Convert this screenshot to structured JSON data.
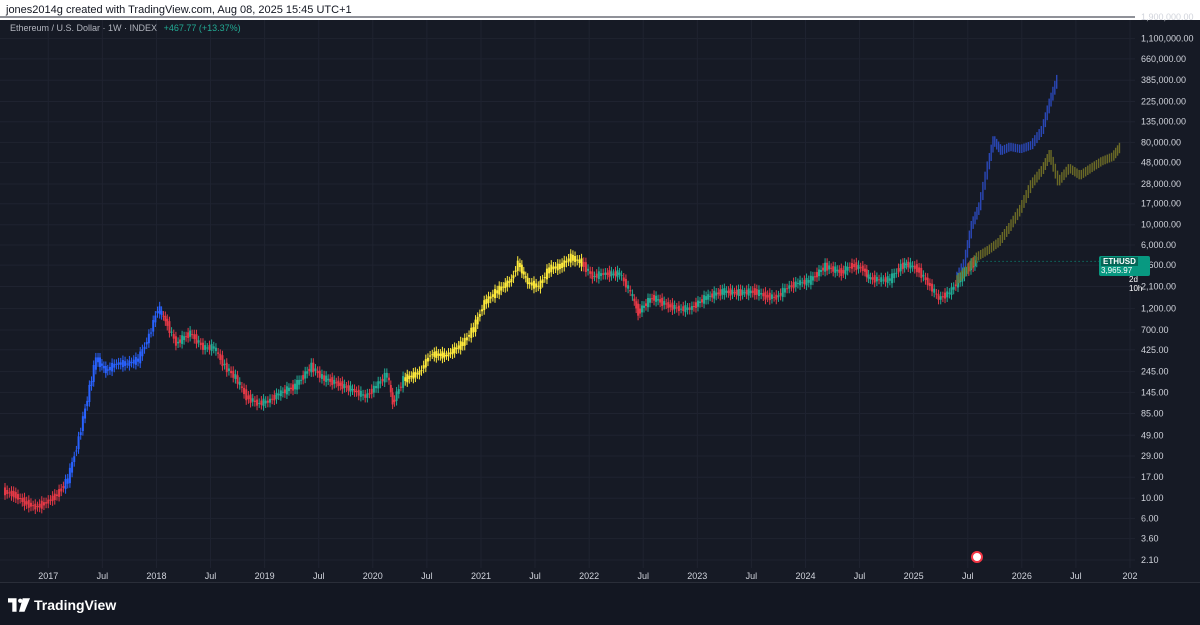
{
  "header": {
    "attribution": "jones2014g created with TradingView.com, Aug 08, 2025 15:45 UTC+1"
  },
  "legend": {
    "symbol": "Ethereum / U.S. Dollar · 1W · INDEX",
    "change": "+467.77 (+13.37%)"
  },
  "price_tag": {
    "symbol": "ETHUSD",
    "price": "3,965.97",
    "countdown": "2d 10h"
  },
  "footer": {
    "brand": "TradingView"
  },
  "colors": {
    "background": "#161a25",
    "grid": "#1f2330",
    "blue_phase": "#2962ff",
    "red_phase": "#e53946",
    "green_phase": "#22ab94",
    "yellow_phase": "#ffeb3b",
    "projection_blue": "#2a47b5",
    "projection_olive": "#6b6a26",
    "price_tag": "#089981"
  },
  "chart_data": {
    "type": "line",
    "title": "Ethereum / U.S. Dollar · 1W · INDEX",
    "scale": "log",
    "grid": true,
    "y_ticks": [
      "1,900,000.00",
      "1,100,000.00",
      "660,000.00",
      "385,000.00",
      "225,000.00",
      "135,000.00",
      "80,000.00",
      "48,000.00",
      "28,000.00",
      "17,000.00",
      "10,000.00",
      "6,000.00",
      "3,600.00",
      "2,100.00",
      "1,200.00",
      "700.00",
      "425.00",
      "245.00",
      "145.00",
      "85.00",
      "49.00",
      "29.00",
      "17.00",
      "10.00",
      "6.00",
      "3.60",
      "2.10"
    ],
    "x_ticks": [
      "2017",
      "Jul",
      "2018",
      "Jul",
      "2019",
      "Jul",
      "2020",
      "Jul",
      "2021",
      "Jul",
      "2022",
      "Jul",
      "2023",
      "Jul",
      "2024",
      "Jul",
      "2025",
      "Jul",
      "2026",
      "Jul",
      "202"
    ],
    "series": [
      {
        "type": "historical",
        "points": [
          [
            2016.6,
            12
          ],
          [
            2016.7,
            11
          ],
          [
            2016.8,
            9
          ],
          [
            2016.9,
            8
          ],
          [
            2017.0,
            9
          ],
          [
            2017.1,
            11
          ],
          [
            2017.2,
            16
          ],
          [
            2017.3,
            45
          ],
          [
            2017.4,
            160
          ],
          [
            2017.46,
            340
          ],
          [
            2017.55,
            250
          ],
          [
            2017.65,
            300
          ],
          [
            2017.75,
            300
          ],
          [
            2017.85,
            330
          ],
          [
            2017.95,
            600
          ],
          [
            2018.03,
            1200
          ],
          [
            2018.1,
            900
          ],
          [
            2018.2,
            500
          ],
          [
            2018.33,
            650
          ],
          [
            2018.45,
            450
          ],
          [
            2018.55,
            450
          ],
          [
            2018.65,
            280
          ],
          [
            2018.75,
            210
          ],
          [
            2018.85,
            130
          ],
          [
            2018.95,
            110
          ],
          [
            2019.05,
            115
          ],
          [
            2019.15,
            140
          ],
          [
            2019.3,
            170
          ],
          [
            2019.45,
            280
          ],
          [
            2019.55,
            210
          ],
          [
            2019.7,
            180
          ],
          [
            2019.85,
            150
          ],
          [
            2019.95,
            130
          ],
          [
            2020.05,
            170
          ],
          [
            2020.15,
            230
          ],
          [
            2020.2,
            110
          ],
          [
            2020.3,
            200
          ],
          [
            2020.45,
            240
          ],
          [
            2020.55,
            380
          ],
          [
            2020.7,
            370
          ],
          [
            2020.85,
            500
          ],
          [
            2020.95,
            730
          ],
          [
            2021.05,
            1400
          ],
          [
            2021.15,
            1800
          ],
          [
            2021.3,
            2500
          ],
          [
            2021.36,
            3800
          ],
          [
            2021.45,
            2300
          ],
          [
            2021.55,
            2100
          ],
          [
            2021.65,
            3300
          ],
          [
            2021.75,
            3500
          ],
          [
            2021.85,
            4400
          ],
          [
            2021.95,
            3800
          ],
          [
            2022.05,
            2700
          ],
          [
            2022.15,
            2900
          ],
          [
            2022.3,
            2900
          ],
          [
            2022.4,
            1800
          ],
          [
            2022.47,
            1100
          ],
          [
            2022.6,
            1600
          ],
          [
            2022.75,
            1300
          ],
          [
            2022.85,
            1200
          ],
          [
            2022.95,
            1200
          ],
          [
            2023.1,
            1600
          ],
          [
            2023.25,
            1850
          ],
          [
            2023.4,
            1800
          ],
          [
            2023.55,
            1850
          ],
          [
            2023.65,
            1650
          ],
          [
            2023.75,
            1600
          ],
          [
            2023.85,
            2050
          ],
          [
            2023.95,
            2300
          ],
          [
            2024.05,
            2400
          ],
          [
            2024.2,
            3500
          ],
          [
            2024.35,
            3000
          ],
          [
            2024.45,
            3600
          ],
          [
            2024.55,
            3300
          ],
          [
            2024.6,
            2600
          ],
          [
            2024.7,
            2500
          ],
          [
            2024.8,
            2500
          ],
          [
            2024.9,
            3500
          ],
          [
            2024.95,
            3700
          ],
          [
            2025.05,
            3300
          ],
          [
            2025.15,
            2300
          ],
          [
            2025.25,
            1550
          ],
          [
            2025.35,
            1800
          ],
          [
            2025.45,
            2600
          ],
          [
            2025.55,
            3600
          ],
          [
            2025.6,
            3965.97
          ]
        ]
      },
      {
        "type": "projection",
        "points": [
          [
            2025.4,
            2500
          ],
          [
            2025.48,
            3800
          ],
          [
            2025.55,
            10000
          ],
          [
            2025.62,
            16000
          ],
          [
            2025.7,
            45000
          ],
          [
            2025.75,
            85000
          ],
          [
            2025.82,
            65000
          ],
          [
            2025.9,
            72000
          ],
          [
            2026.0,
            68000
          ],
          [
            2026.1,
            75000
          ],
          [
            2026.2,
            110000
          ],
          [
            2026.27,
            220000
          ],
          [
            2026.34,
            400000
          ]
        ]
      },
      {
        "type": "projection",
        "points": [
          [
            2025.4,
            2400
          ],
          [
            2025.5,
            3200
          ],
          [
            2025.6,
            4500
          ],
          [
            2025.7,
            5300
          ],
          [
            2025.8,
            6500
          ],
          [
            2025.9,
            9500
          ],
          [
            2026.0,
            15000
          ],
          [
            2026.1,
            28000
          ],
          [
            2026.2,
            40000
          ],
          [
            2026.27,
            60000
          ],
          [
            2026.35,
            30000
          ],
          [
            2026.45,
            42000
          ],
          [
            2026.55,
            35000
          ],
          [
            2026.65,
            42000
          ],
          [
            2026.75,
            50000
          ],
          [
            2026.85,
            56000
          ],
          [
            2026.92,
            72000
          ]
        ]
      }
    ]
  }
}
